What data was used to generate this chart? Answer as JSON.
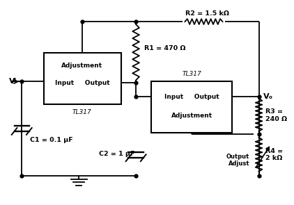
{
  "bg_color": "#ffffff",
  "R1_label": "R1 = 470 Ω",
  "R2_label": "R2 = 1.5 kΩ",
  "R3_label": "R3 =\n240 Ω",
  "R4_label": "R4 =\n2 kΩ",
  "C1_label": "C1 = 0.1 μF",
  "C2_label": "C2 = 1 μF",
  "VI_label": "Vᴵ",
  "VO_label": "Vₒ",
  "TL317": "TL317",
  "Adjustment": "Adjustment",
  "Input_Output": "Input     Output",
  "Output_Adjust": "Output\nAdjust"
}
